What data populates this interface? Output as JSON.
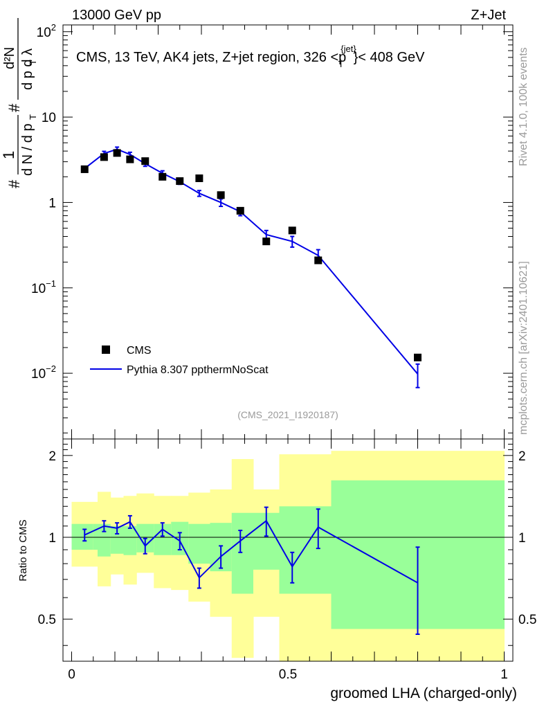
{
  "header": {
    "left_label": "13000 GeV pp",
    "right_label": "Z+Jet"
  },
  "side_labels": {
    "rivet": "Rivet 4.1.0,  100k events",
    "mcplots": "mcplots.cern.ch [arXiv:2401.10621]"
  },
  "colors": {
    "mc_line": "#0000e6",
    "band_inner": "#99ff99",
    "band_outer": "#ffff99",
    "data_marker": "#000000"
  },
  "chart_data": [
    {
      "type": "line",
      "panel": "main",
      "title": "CMS, 13 TeV, AK4 jets, Z+jet region, 326 <p",
      "title_sup": "{jet}",
      "title_sub": "T",
      "title_tail": "}< 408 GeV",
      "analysis_id": "(CMS_2021_I1920187)",
      "xlabel": "groomed LHA (charged-only)",
      "ylabel": "1/dN/dpT dN²/dpT dλ",
      "ylabel_parts": {
        "frac1_num": "1",
        "frac1_den": "d N / d p",
        "frac2_num": "d²N",
        "frac2_den": "d p  d λ",
        "hash": "#",
        "sub_t": "T"
      },
      "yscale": "log",
      "xlim": [
        -0.02,
        1.02
      ],
      "ylim": [
        0.0017,
        120
      ],
      "y_ticks": [
        {
          "value": 0.01,
          "base": "10",
          "exp": "−2"
        },
        {
          "value": 0.1,
          "base": "10",
          "exp": "−1"
        },
        {
          "value": 1,
          "base": "1",
          "exp": ""
        },
        {
          "value": 10,
          "base": "10",
          "exp": ""
        },
        {
          "value": 100,
          "base": "10",
          "exp": "2"
        }
      ],
      "legend": [
        {
          "label": "CMS",
          "kind": "marker"
        },
        {
          "label": "Pythia 8.307 ppthermNoScat",
          "kind": "line"
        }
      ],
      "series": [
        {
          "name": "CMS",
          "kind": "marker",
          "x": [
            0.03,
            0.075,
            0.105,
            0.135,
            0.17,
            0.21,
            0.25,
            0.295,
            0.345,
            0.39,
            0.45,
            0.51,
            0.57,
            0.8
          ],
          "y": [
            2.45,
            3.4,
            3.8,
            3.2,
            3.05,
            2.0,
            1.78,
            1.92,
            1.22,
            0.8,
            0.35,
            0.47,
            0.21,
            0.0153
          ]
        },
        {
          "name": "Pythia 8.307 ppthermNoScat",
          "kind": "line",
          "x": [
            0.03,
            0.075,
            0.105,
            0.135,
            0.17,
            0.21,
            0.25,
            0.295,
            0.345,
            0.39,
            0.45,
            0.51,
            0.57,
            0.8
          ],
          "y": [
            2.5,
            3.75,
            4.2,
            3.65,
            2.85,
            2.2,
            1.75,
            1.28,
            1.0,
            0.78,
            0.42,
            0.35,
            0.24,
            0.0098
          ],
          "yerr": [
            0.12,
            0.22,
            0.25,
            0.22,
            0.2,
            0.15,
            0.12,
            0.1,
            0.1,
            0.08,
            0.05,
            0.05,
            0.04,
            0.003
          ]
        }
      ]
    },
    {
      "type": "line",
      "panel": "ratio",
      "ylabel": "Ratio to CMS",
      "xlabel": "groomed LHA (charged-only)",
      "xlim": [
        -0.02,
        1.02
      ],
      "ylim": [
        0.35,
        2.3
      ],
      "y_ticks": [
        0.5,
        1,
        2
      ],
      "y_tick_labels": [
        "0.5",
        "1",
        "2"
      ],
      "x_ticks": [
        0,
        0.5,
        1
      ],
      "x_tick_labels": [
        "0",
        "0.5",
        "1"
      ],
      "bands": {
        "edges": [
          0,
          0.05,
          0.06,
          0.09,
          0.12,
          0.15,
          0.19,
          0.23,
          0.27,
          0.32,
          0.37,
          0.42,
          0.48,
          0.54,
          0.6,
          1.0
        ],
        "inner_lo": [
          0.9,
          0.9,
          0.85,
          0.87,
          0.86,
          0.88,
          0.86,
          0.86,
          0.8,
          0.75,
          0.62,
          0.76,
          0.62,
          0.62,
          0.46
        ],
        "inner_hi": [
          1.12,
          1.12,
          1.12,
          1.1,
          1.1,
          1.12,
          1.12,
          1.14,
          1.12,
          1.13,
          1.23,
          1.23,
          1.3,
          1.3,
          1.62
        ],
        "outer_lo": [
          0.78,
          0.78,
          0.66,
          0.73,
          0.67,
          0.74,
          0.65,
          0.64,
          0.58,
          0.51,
          0.36,
          0.51,
          0.33,
          0.33,
          0.3
        ],
        "outer_hi": [
          1.35,
          1.35,
          1.47,
          1.4,
          1.42,
          1.45,
          1.42,
          1.42,
          1.46,
          1.5,
          1.94,
          1.5,
          2.02,
          2.02,
          2.08
        ]
      },
      "series": [
        {
          "name": "Pythia 8.307 ppthermNoScat / CMS",
          "x": [
            0.03,
            0.075,
            0.105,
            0.135,
            0.17,
            0.21,
            0.25,
            0.295,
            0.345,
            0.39,
            0.45,
            0.51,
            0.57,
            0.8
          ],
          "y": [
            1.02,
            1.1,
            1.08,
            1.14,
            0.93,
            1.07,
            0.97,
            0.71,
            0.85,
            0.97,
            1.15,
            0.78,
            1.09,
            0.68
          ],
          "yerr": [
            0.05,
            0.05,
            0.05,
            0.06,
            0.06,
            0.06,
            0.07,
            0.06,
            0.08,
            0.09,
            0.14,
            0.1,
            0.18,
            0.24
          ]
        }
      ]
    }
  ]
}
